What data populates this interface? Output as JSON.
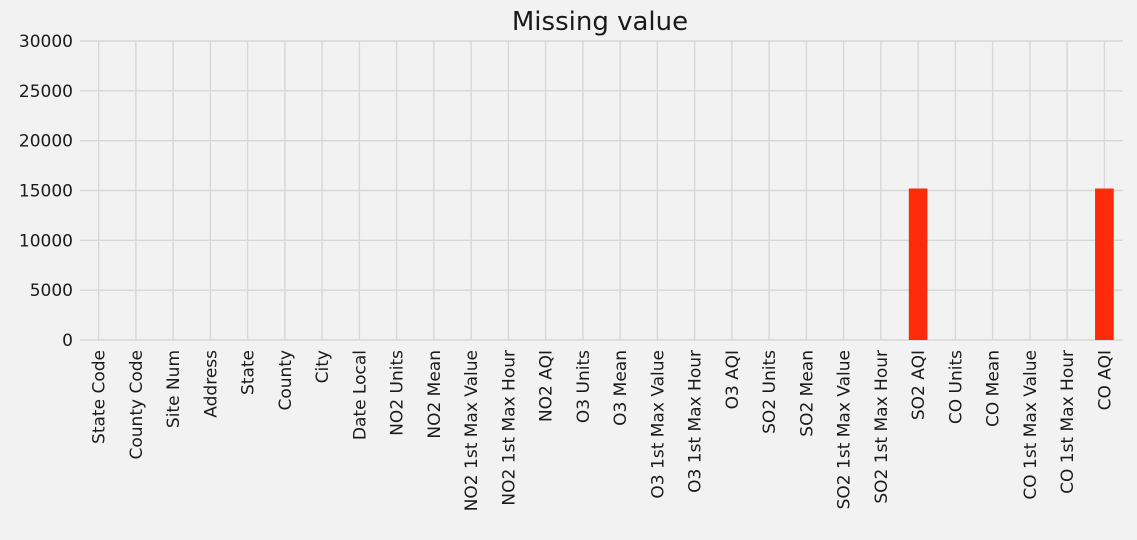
{
  "chart_data": {
    "type": "bar",
    "title": "Missing value",
    "xlabel": "",
    "ylabel": "",
    "ylim": [
      0,
      30000
    ],
    "yticks": [
      0,
      5000,
      10000,
      15000,
      20000,
      25000,
      30000
    ],
    "grid": true,
    "bar_color": "#ff2a0a",
    "background_color": "#f2f2f2",
    "grid_color": "#d7d7d7",
    "categories": [
      "State Code",
      "County Code",
      "Site Num",
      "Address",
      "State",
      "County",
      "City",
      "Date Local",
      "NO2 Units",
      "NO2 Mean",
      "NO2 1st Max Value",
      "NO2 1st Max Hour",
      "NO2 AQI",
      "O3 Units",
      "O3 Mean",
      "O3 1st Max Value",
      "O3 1st Max Hour",
      "O3 AQI",
      "SO2 Units",
      "SO2 Mean",
      "SO2 1st Max Value",
      "SO2 1st Max Hour",
      "SO2 AQI",
      "CO Units",
      "CO Mean",
      "CO 1st Max Value",
      "CO 1st Max Hour",
      "CO AQI"
    ],
    "values": [
      0,
      0,
      0,
      0,
      0,
      0,
      0,
      0,
      0,
      0,
      0,
      0,
      0,
      0,
      0,
      0,
      0,
      0,
      0,
      0,
      0,
      0,
      15200,
      0,
      0,
      0,
      0,
      15200
    ]
  }
}
